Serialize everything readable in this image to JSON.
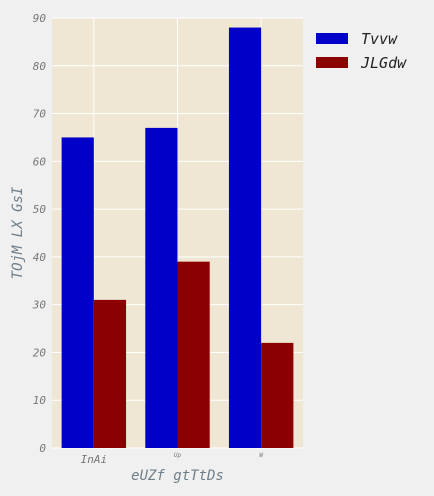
{
  "chart_data": {
    "type": "bar",
    "categories": [
      "InAi",
      "Up",
      "W"
    ],
    "series": [
      {
        "name": "Tvvw",
        "values": [
          65,
          67,
          88
        ],
        "color": "#0000c8"
      },
      {
        "name": "JLGdw",
        "values": [
          31,
          39,
          22
        ],
        "color": "#8b0000"
      }
    ],
    "xlabel": "eUZf gtTtDs",
    "ylabel": "TOjM  LX  GsI",
    "ylim": [
      0,
      90
    ],
    "yticks": [
      0,
      10,
      20,
      30,
      40,
      50,
      60,
      70,
      80,
      90
    ],
    "grid": true,
    "legend_position": "top-right",
    "plot_background": "#efe6d4",
    "grid_color": "#ffffff"
  }
}
